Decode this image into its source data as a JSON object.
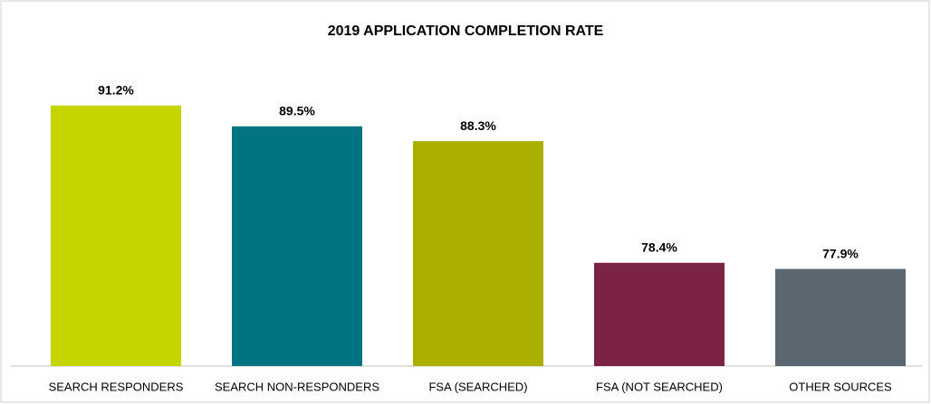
{
  "chart_data": {
    "type": "bar",
    "title": "2019 APPLICATION COMPLETION RATE",
    "categories": [
      "SEARCH RESPONDERS",
      "SEARCH NON-RESPONDERS",
      "FSA (SEARCHED)",
      "FSA (NOT SEARCHED)",
      "OTHER SOURCES"
    ],
    "values": [
      91.2,
      89.5,
      88.3,
      78.4,
      77.9
    ],
    "value_labels": [
      "91.2%",
      "89.5%",
      "88.3%",
      "78.4%",
      "77.9%"
    ],
    "colors": [
      "#c5d500",
      "#007480",
      "#abaf00",
      "#7d2247",
      "#5b6770"
    ],
    "ylim": [
      70,
      95
    ]
  }
}
